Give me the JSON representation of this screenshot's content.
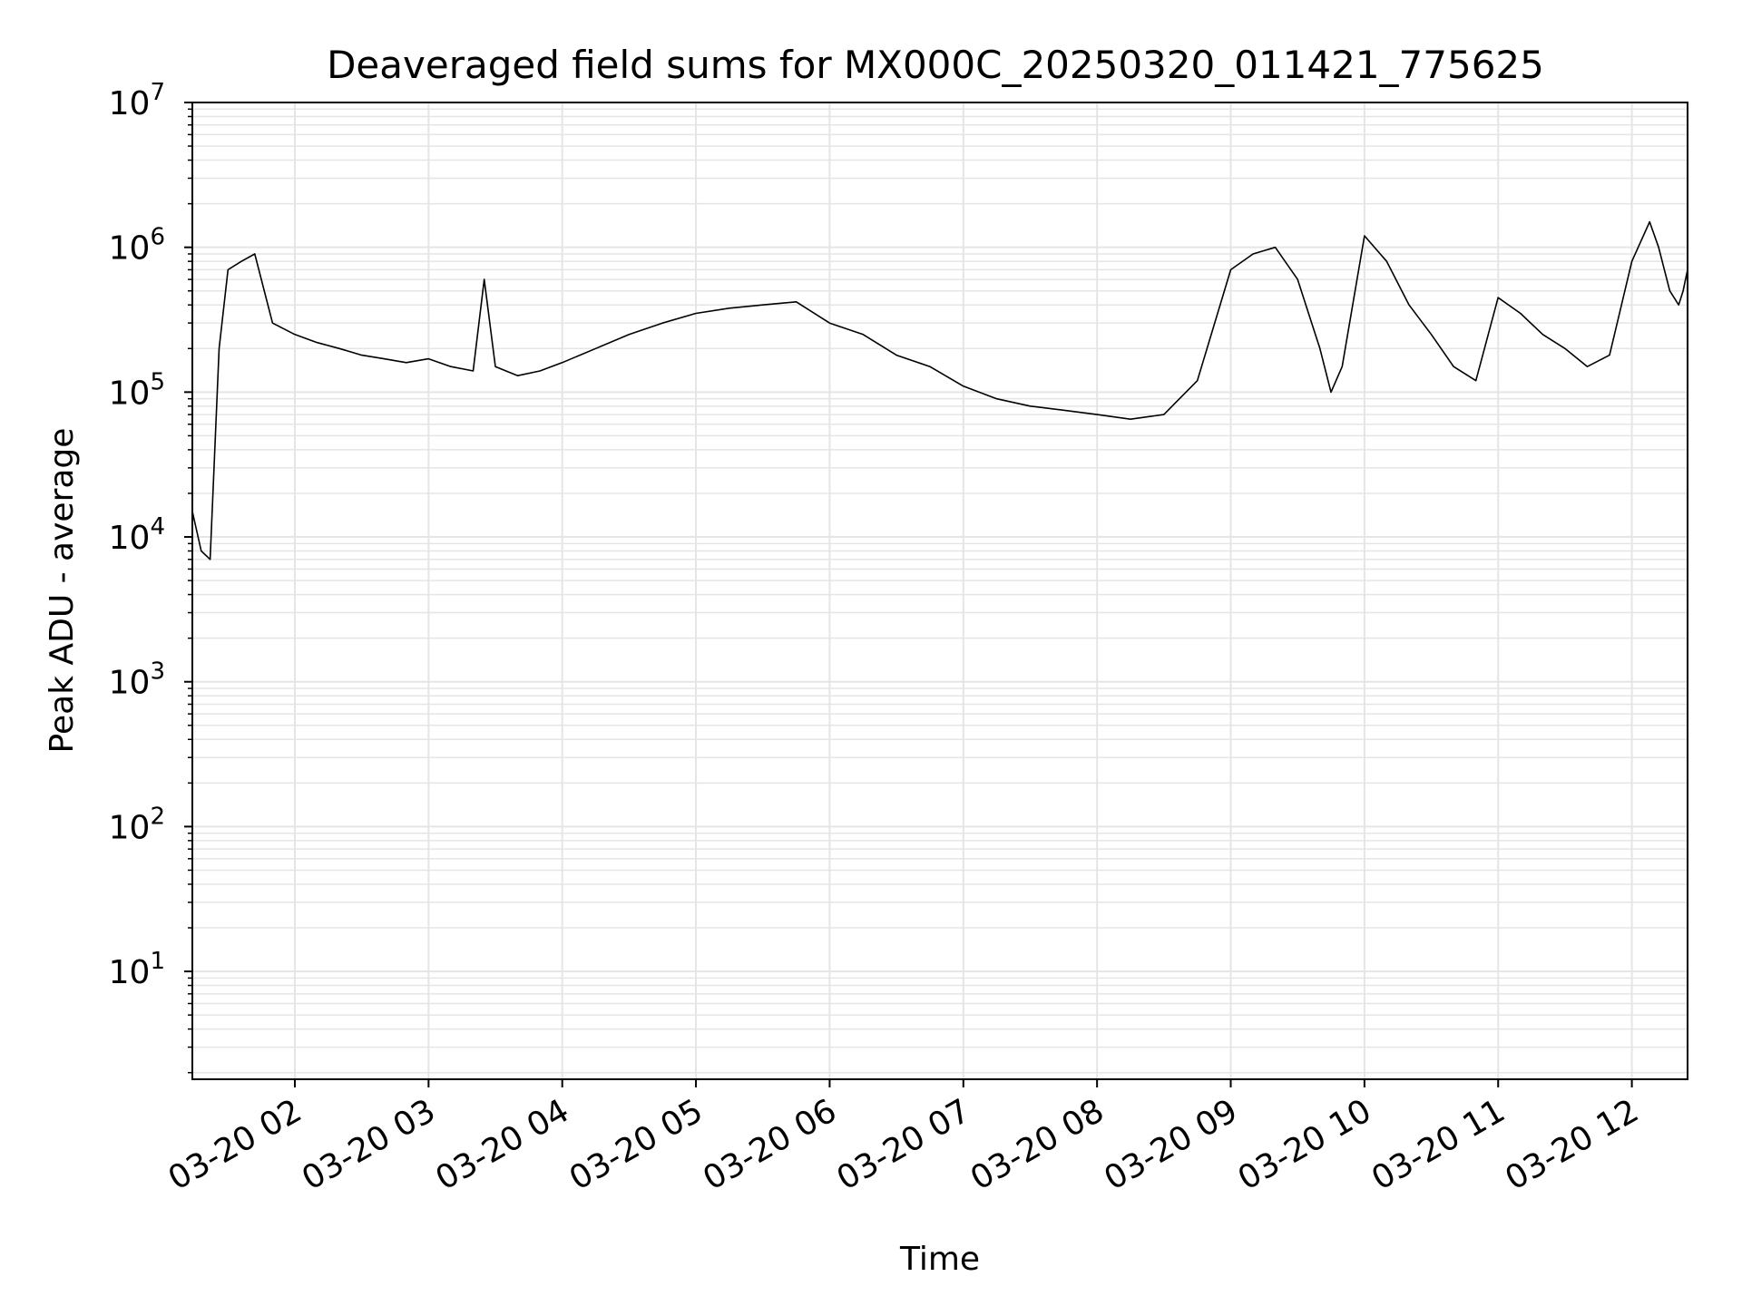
{
  "chart_data": {
    "type": "line",
    "title": "Deaveraged field sums for MX000C_20250320_011421_775625",
    "xlabel": "Time",
    "ylabel": "Peak ADU - average",
    "yscale": "log",
    "grid": true,
    "line_color": "#000000",
    "grid_color": "#e5e5e5",
    "xlim": [
      "2025-03-20 01:14",
      "2025-03-20 12:25"
    ],
    "ylim": [
      1.8,
      10000000
    ],
    "x_ticks": [
      "03-20 02",
      "03-20 03",
      "03-20 04",
      "03-20 05",
      "03-20 06",
      "03-20 07",
      "03-20 08",
      "03-20 09",
      "03-20 10",
      "03-20 11",
      "03-20 12"
    ],
    "y_ticks": [
      {
        "base": "10",
        "exp": "1"
      },
      {
        "base": "10",
        "exp": "2"
      },
      {
        "base": "10",
        "exp": "3"
      },
      {
        "base": "10",
        "exp": "4"
      },
      {
        "base": "10",
        "exp": "5"
      },
      {
        "base": "10",
        "exp": "6"
      },
      {
        "base": "10",
        "exp": "7"
      }
    ],
    "series": [
      {
        "x": [
          "2025-03-20 01:14",
          "2025-03-20 01:18",
          "2025-03-20 01:22",
          "2025-03-20 01:26",
          "2025-03-20 01:30",
          "2025-03-20 01:36",
          "2025-03-20 01:42",
          "2025-03-20 01:50",
          "2025-03-20 02:00",
          "2025-03-20 02:10",
          "2025-03-20 02:20",
          "2025-03-20 02:30",
          "2025-03-20 02:40",
          "2025-03-20 02:50",
          "2025-03-20 03:00",
          "2025-03-20 03:10",
          "2025-03-20 03:20",
          "2025-03-20 03:25",
          "2025-03-20 03:30",
          "2025-03-20 03:40",
          "2025-03-20 03:50",
          "2025-03-20 04:00",
          "2025-03-20 04:15",
          "2025-03-20 04:30",
          "2025-03-20 04:45",
          "2025-03-20 05:00",
          "2025-03-20 05:15",
          "2025-03-20 05:30",
          "2025-03-20 05:45",
          "2025-03-20 06:00",
          "2025-03-20 06:15",
          "2025-03-20 06:30",
          "2025-03-20 06:45",
          "2025-03-20 07:00",
          "2025-03-20 07:15",
          "2025-03-20 07:30",
          "2025-03-20 07:45",
          "2025-03-20 08:00",
          "2025-03-20 08:15",
          "2025-03-20 08:30",
          "2025-03-20 08:45",
          "2025-03-20 09:00",
          "2025-03-20 09:10",
          "2025-03-20 09:20",
          "2025-03-20 09:30",
          "2025-03-20 09:40",
          "2025-03-20 09:45",
          "2025-03-20 09:50",
          "2025-03-20 10:00",
          "2025-03-20 10:10",
          "2025-03-20 10:20",
          "2025-03-20 10:30",
          "2025-03-20 10:40",
          "2025-03-20 10:50",
          "2025-03-20 11:00",
          "2025-03-20 11:10",
          "2025-03-20 11:20",
          "2025-03-20 11:30",
          "2025-03-20 11:40",
          "2025-03-20 11:50",
          "2025-03-20 12:00",
          "2025-03-20 12:08",
          "2025-03-20 12:12",
          "2025-03-20 12:17",
          "2025-03-20 12:21",
          "2025-03-20 12:23",
          "2025-03-20 12:25"
        ],
        "y": [
          15000,
          8000,
          7000,
          200000,
          700000,
          800000,
          900000,
          300000,
          250000,
          220000,
          200000,
          180000,
          170000,
          160000,
          170000,
          150000,
          140000,
          600000,
          150000,
          130000,
          140000,
          160000,
          200000,
          250000,
          300000,
          350000,
          380000,
          400000,
          420000,
          300000,
          250000,
          180000,
          150000,
          110000,
          90000,
          80000,
          75000,
          70000,
          65000,
          70000,
          120000,
          700000,
          900000,
          1000000,
          600000,
          200000,
          100000,
          150000,
          1200000,
          800000,
          400000,
          250000,
          150000,
          120000,
          450000,
          350000,
          250000,
          200000,
          150000,
          180000,
          800000,
          1500000,
          1000000,
          500000,
          400000,
          500000,
          700000
        ]
      }
    ]
  }
}
